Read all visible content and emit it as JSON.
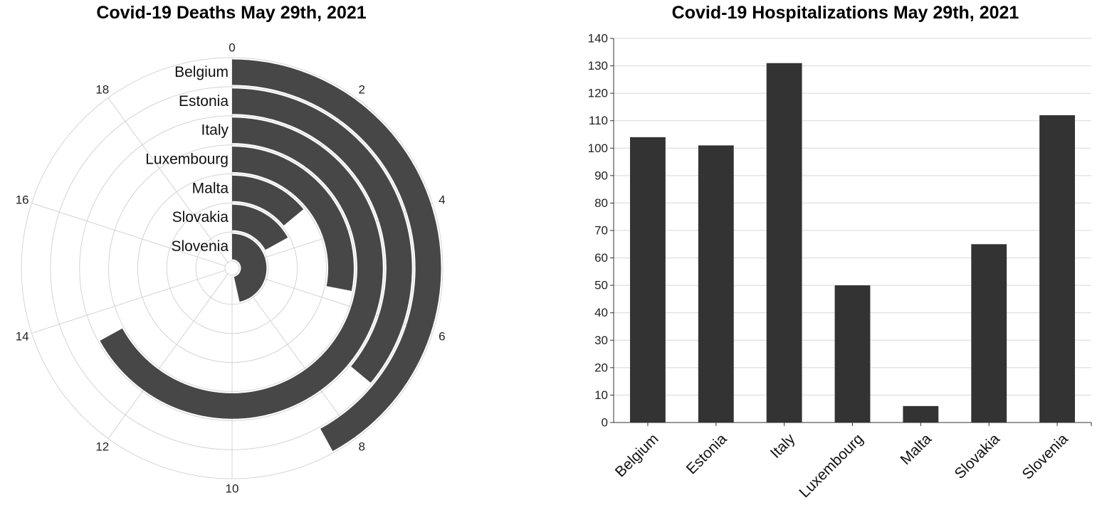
{
  "chart_data": [
    {
      "type": "bar",
      "variant": "radial",
      "title": "Covid-19 Deaths May 29th, 2021",
      "xlabel": "",
      "ylabel": "",
      "categories": [
        "Belgium",
        "Estonia",
        "Italy",
        "Luxembourg",
        "Malta",
        "Slovakia",
        "Slovenia"
      ],
      "values": [
        8.4,
        7.2,
        13.4,
        5.6,
        2.8,
        3.4,
        9.3
      ],
      "ylim": [
        0,
        20
      ],
      "angular_ticks": [
        "0",
        "2",
        "4",
        "6",
        "8",
        "10",
        "12",
        "14",
        "16",
        "18"
      ],
      "grid": true,
      "bar_color": "#474747"
    },
    {
      "type": "bar",
      "title": "Covid-19 Hospitalizations May 29th, 2021",
      "xlabel": "",
      "ylabel": "",
      "categories": [
        "Belgium",
        "Estonia",
        "Italy",
        "Luxembourg",
        "Malta",
        "Slovakia",
        "Slovenia"
      ],
      "values": [
        104,
        101,
        131,
        50,
        6,
        65,
        112
      ],
      "ylim": [
        0,
        140
      ],
      "yticks": [
        "0",
        "10",
        "20",
        "30",
        "40",
        "50",
        "60",
        "70",
        "80",
        "90",
        "100",
        "110",
        "120",
        "130",
        "140"
      ],
      "grid": true,
      "bar_color": "#333333"
    }
  ]
}
